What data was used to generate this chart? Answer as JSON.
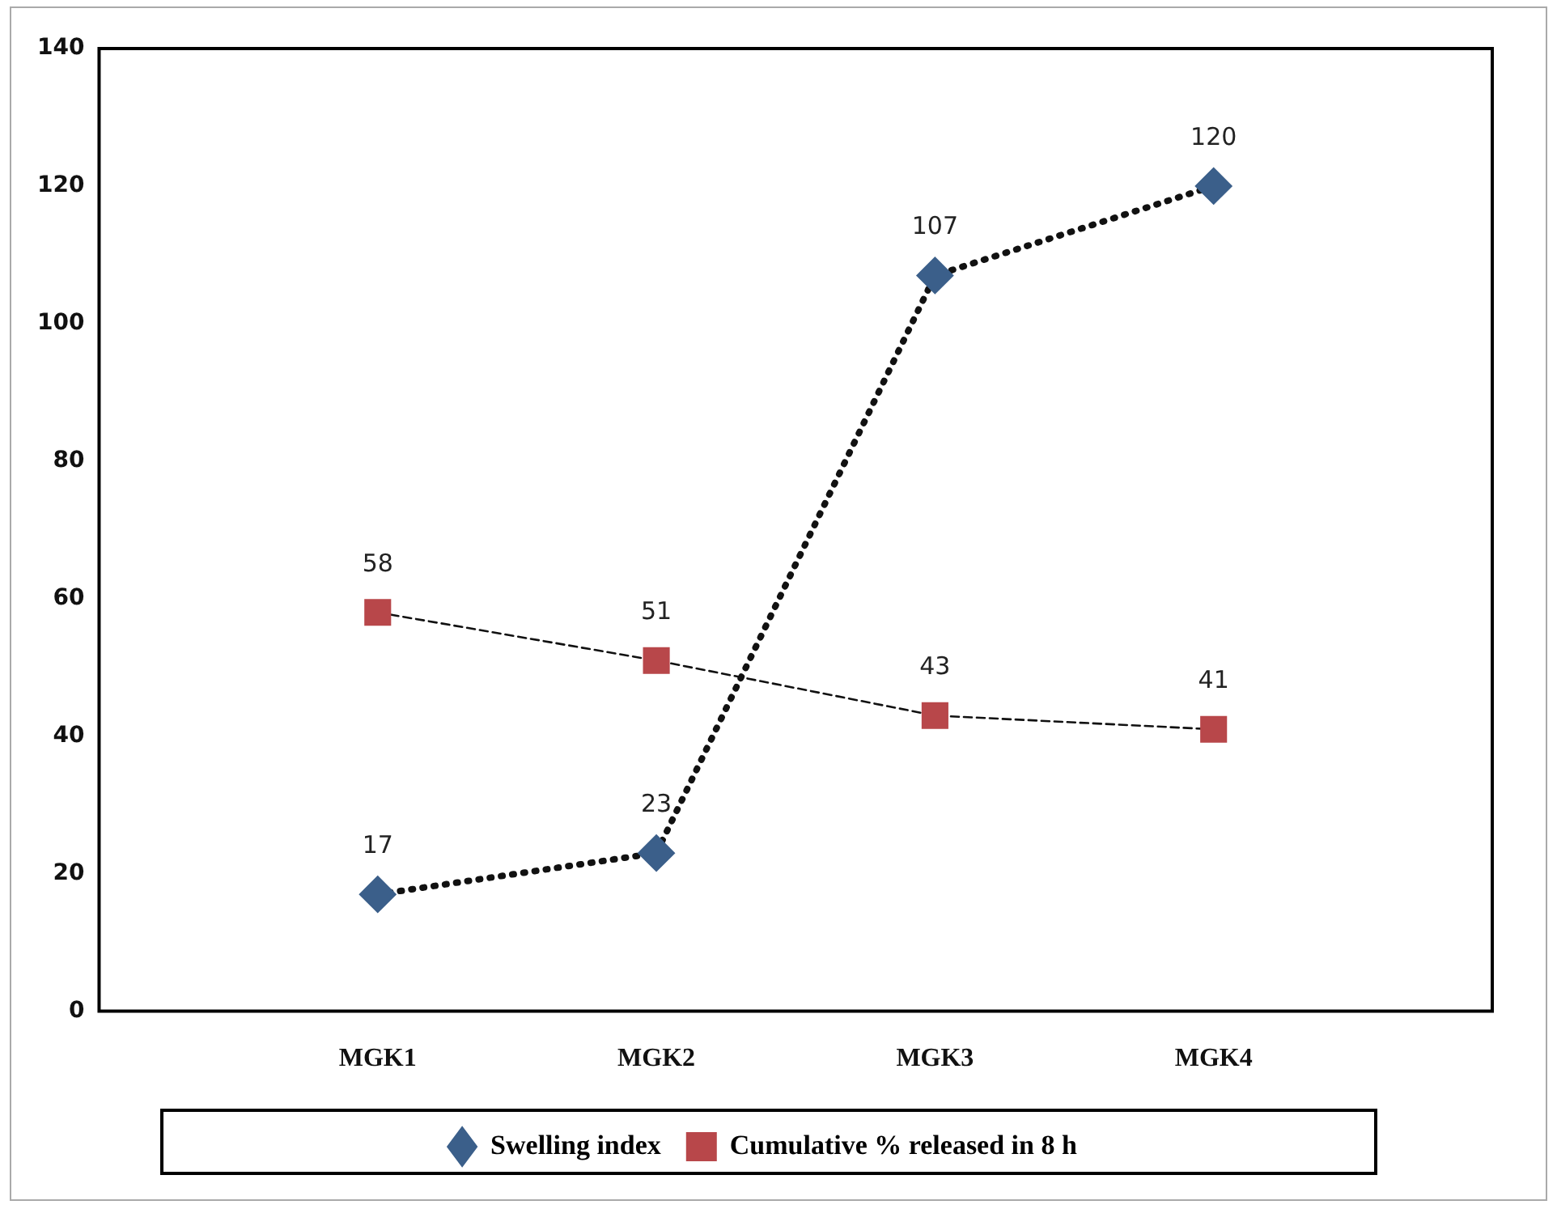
{
  "chart_data": {
    "type": "line",
    "categories": [
      "MGK1",
      "MGK2",
      "MGK3",
      "MGK4"
    ],
    "series": [
      {
        "name": "Swelling index",
        "color": "#3b5f8a",
        "values": [
          17,
          23,
          107,
          120
        ],
        "marker": "diamond",
        "line_style": "dotted"
      },
      {
        "name": "Cumulative % released in 8 h",
        "color": "#b8474a",
        "values": [
          58,
          51,
          43,
          41
        ],
        "marker": "square",
        "line_style": "dashed"
      }
    ],
    "ylim": [
      0,
      140
    ],
    "yticks": [
      0,
      20,
      40,
      60,
      80,
      100,
      120,
      140
    ],
    "grid": false,
    "legend": "bottom",
    "data_labels": true
  }
}
